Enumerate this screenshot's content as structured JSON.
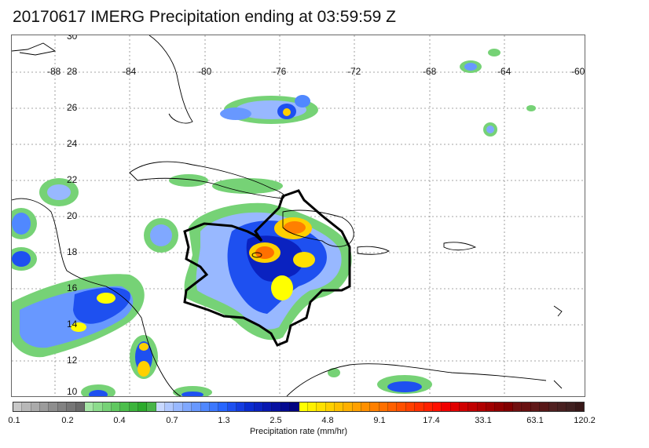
{
  "title": "20170617 IMERG Precipitation ending at 03:59:59 Z",
  "map": {
    "lat_labels": [
      "30",
      "28",
      "26",
      "24",
      "22",
      "20",
      "18",
      "16",
      "14",
      "12",
      "10"
    ],
    "lon_labels": [
      "-88",
      "-84",
      "-80",
      "-76",
      "-72",
      "-68",
      "-64",
      "-60"
    ]
  },
  "colorbar": {
    "label": "Precipitation rate (mm/hr)",
    "tick_labels": [
      "0.1",
      "0.2",
      "0.4",
      "0.7",
      "1.3",
      "2.5",
      "4.8",
      "9.1",
      "17.4",
      "33.1",
      "63.1",
      "120.2"
    ],
    "colors": [
      "#c8c8c8",
      "#b8b8b8",
      "#aaaaaa",
      "#9c9c9c",
      "#8e8e8e",
      "#828282",
      "#767676",
      "#6a6a6a",
      "#a6e6a6",
      "#8cdc8c",
      "#76d276",
      "#60c860",
      "#4cbe4c",
      "#3cb43c",
      "#2caa2c",
      "#48b448",
      "#c8d8ff",
      "#b0c8ff",
      "#98b8ff",
      "#80a8ff",
      "#6898ff",
      "#5088ff",
      "#3c78ff",
      "#2866ff",
      "#1e50f0",
      "#143ce0",
      "#0a2cd0",
      "#0a22c0",
      "#0818b0",
      "#0610a0",
      "#040a90",
      "#020480",
      "#ffff00",
      "#fff000",
      "#ffe000",
      "#ffd000",
      "#ffc000",
      "#ffb000",
      "#ffa000",
      "#ff9000",
      "#ff8000",
      "#ff7000",
      "#ff6000",
      "#ff5000",
      "#ff4000",
      "#ff3000",
      "#ff2000",
      "#ff1000",
      "#f00000",
      "#e00000",
      "#d00000",
      "#c00000",
      "#b00000",
      "#a00000",
      "#900000",
      "#800000",
      "#701010",
      "#681010",
      "#601818",
      "#581818",
      "#502020",
      "#482020",
      "#402020",
      "#381818"
    ]
  }
}
